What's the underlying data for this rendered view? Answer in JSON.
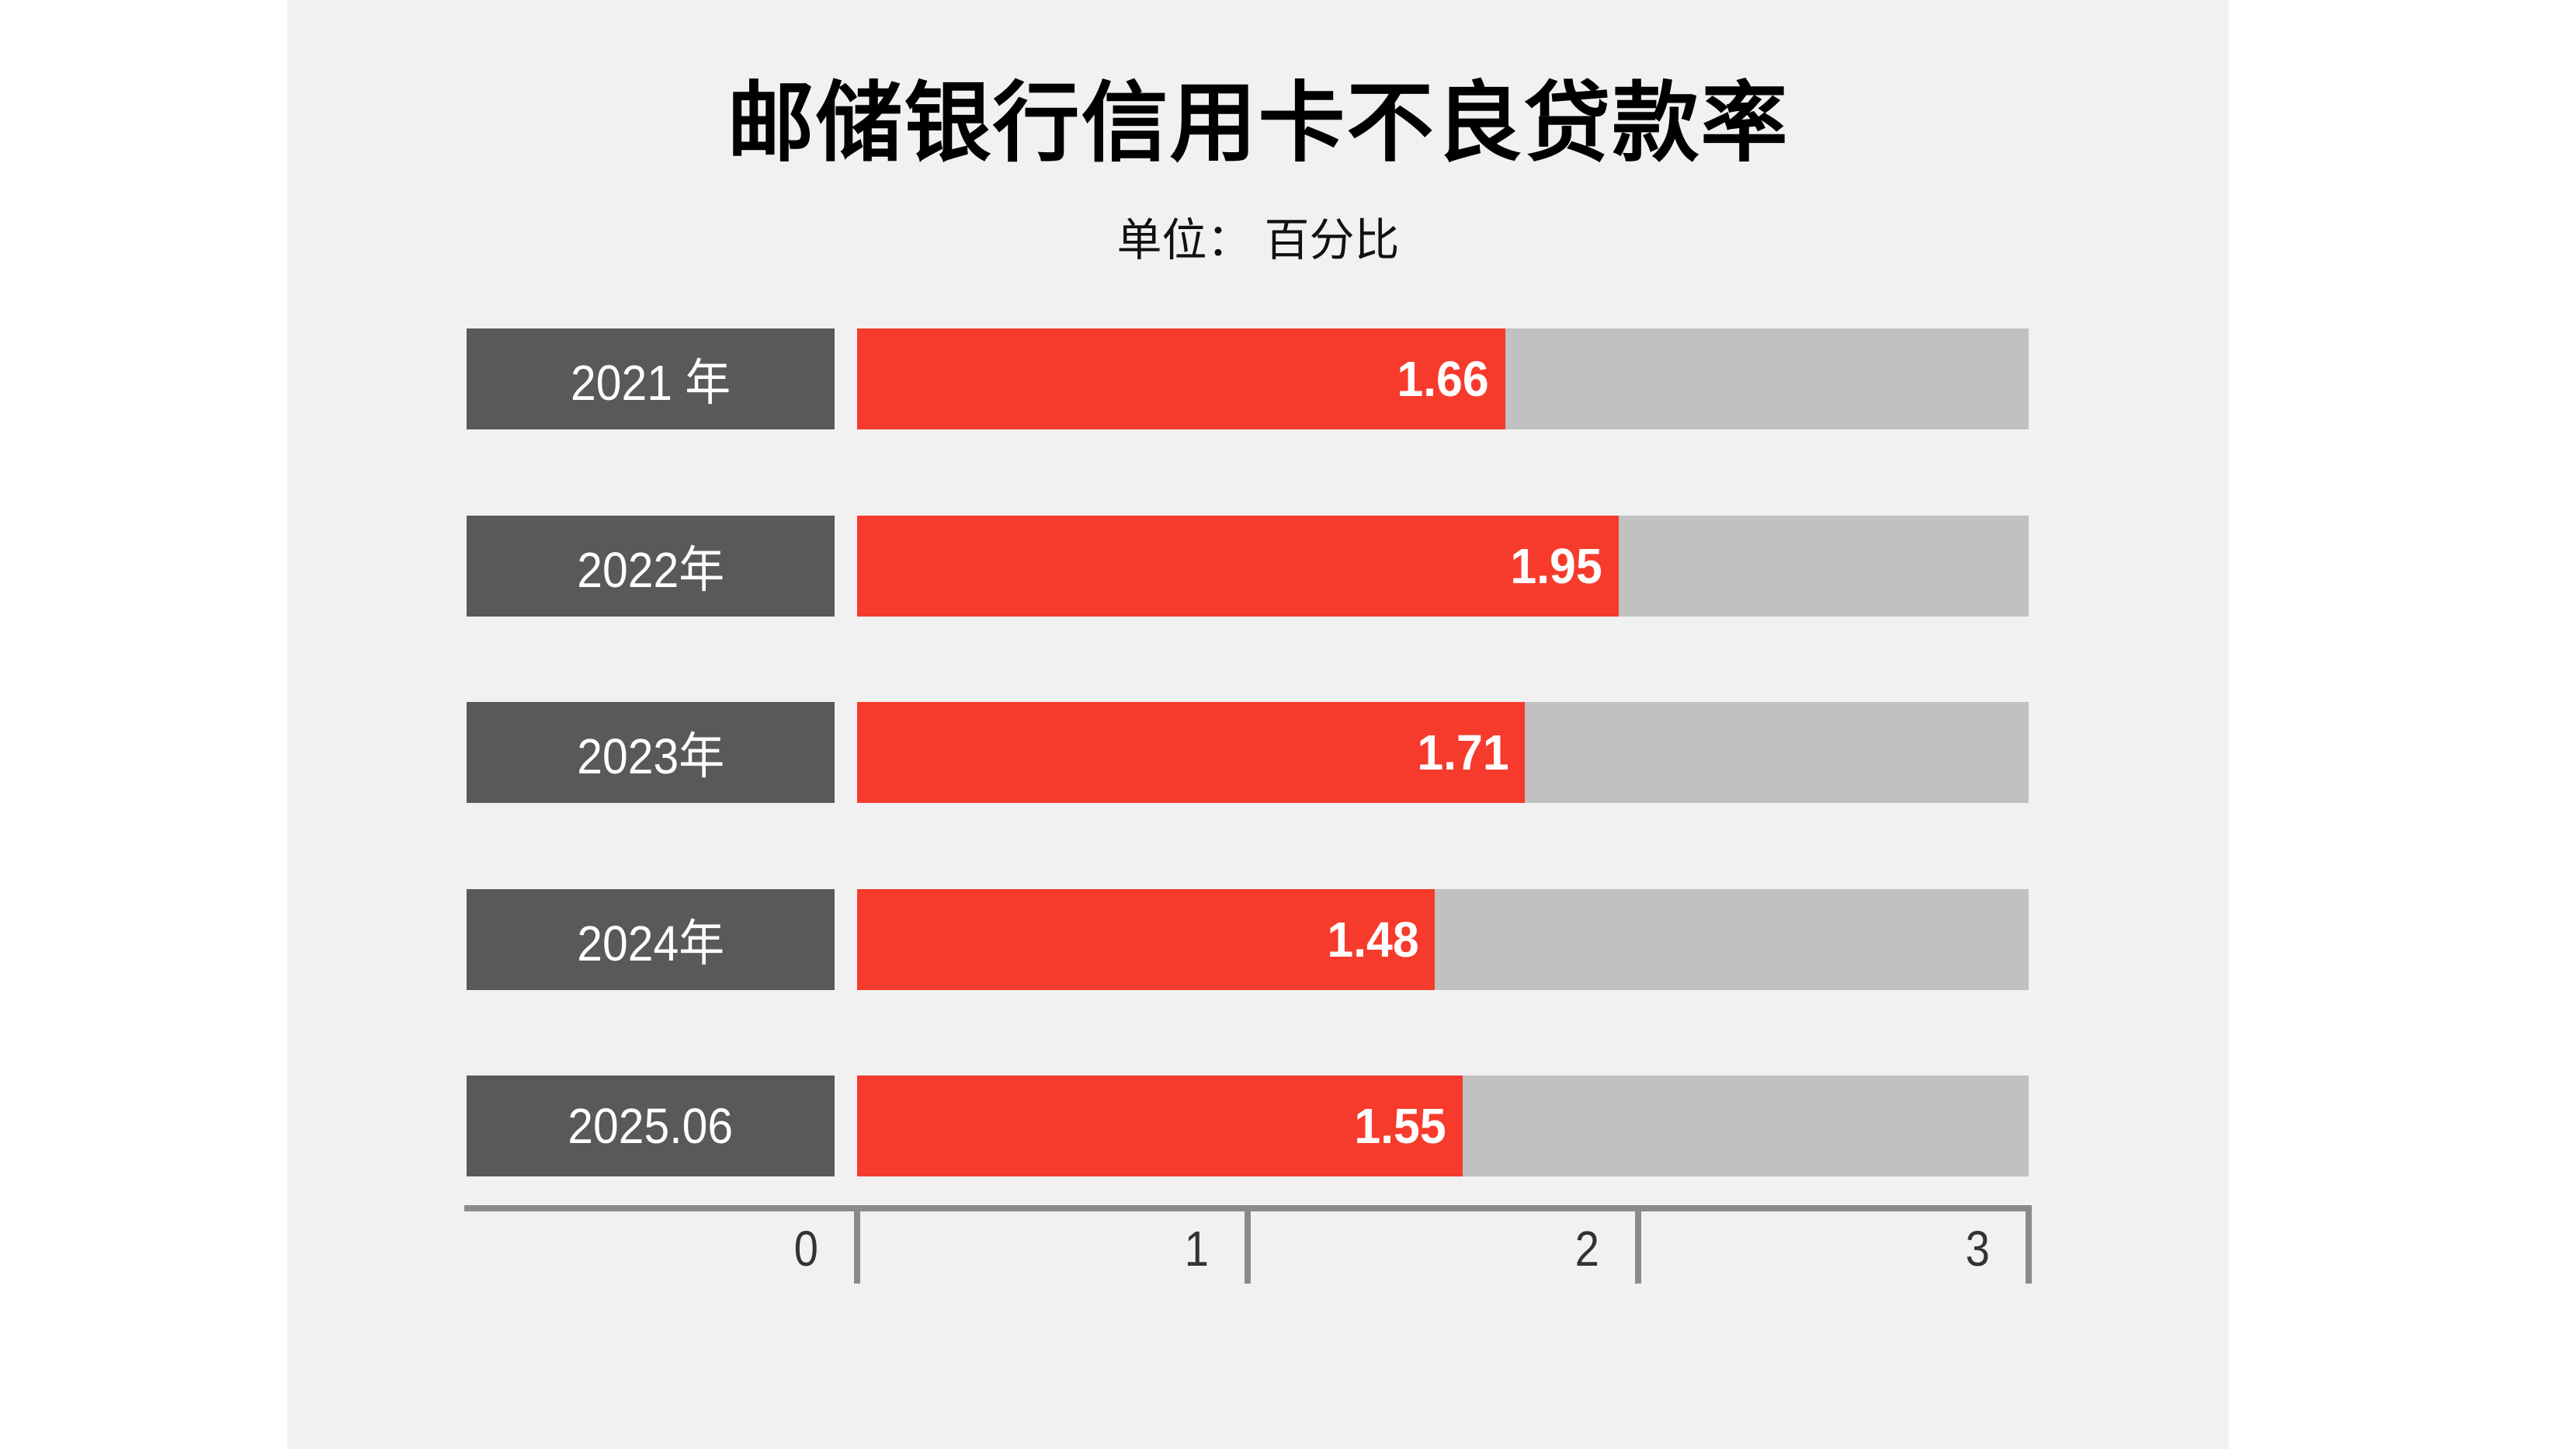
{
  "header": {
    "title": "邮储银行信用卡不良贷款率",
    "unit_label": "单位：  百分比"
  },
  "chart_data": {
    "type": "bar",
    "orientation": "horizontal",
    "title": "邮储银行信用卡不良贷款率",
    "subtitle": "单位：  百分比",
    "categories": [
      "2021 年",
      "2022年",
      "2023年",
      "2024年",
      "2025.06"
    ],
    "values": [
      1.66,
      1.95,
      1.71,
      1.48,
      1.55
    ],
    "value_labels": [
      "1.66",
      "1.95",
      "1.71",
      "1.48",
      "1.55"
    ],
    "xlabel": "",
    "ylabel": "",
    "xlim": [
      0,
      3
    ],
    "x_ticks": [
      "0",
      "1",
      "2",
      "3"
    ],
    "grid": false,
    "legend": null,
    "colors": {
      "page_background": "#ffffff",
      "panel_background": "#f1f1f1",
      "bar_fill": "#f63b2c",
      "bar_track": "#c1c1c1",
      "category_box": "#595959",
      "category_text": "#ffffff",
      "value_text": "#ffffff",
      "axis": "#8a8a8a",
      "tick_text": "#333333",
      "title_text": "#000000"
    }
  }
}
